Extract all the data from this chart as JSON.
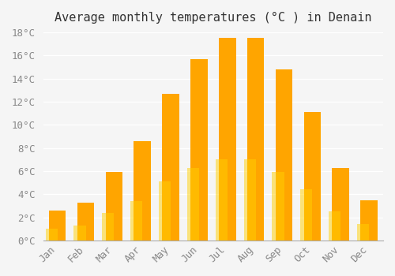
{
  "title": "Average monthly temperatures (°C ) in Denain",
  "months": [
    "Jan",
    "Feb",
    "Mar",
    "Apr",
    "May",
    "Jun",
    "Jul",
    "Aug",
    "Sep",
    "Oct",
    "Nov",
    "Dec"
  ],
  "values": [
    2.6,
    3.3,
    5.9,
    8.6,
    12.7,
    15.7,
    17.5,
    17.5,
    14.8,
    11.1,
    6.3,
    3.5
  ],
  "bar_color_top": "#FFA500",
  "bar_color_bottom": "#FFD000",
  "background_color": "#f5f5f5",
  "grid_color": "#ffffff",
  "ylim": [
    0,
    18
  ],
  "ytick_step": 2,
  "title_fontsize": 11,
  "tick_fontsize": 9,
  "tick_label_color": "#888888",
  "tick_font": "monospace"
}
